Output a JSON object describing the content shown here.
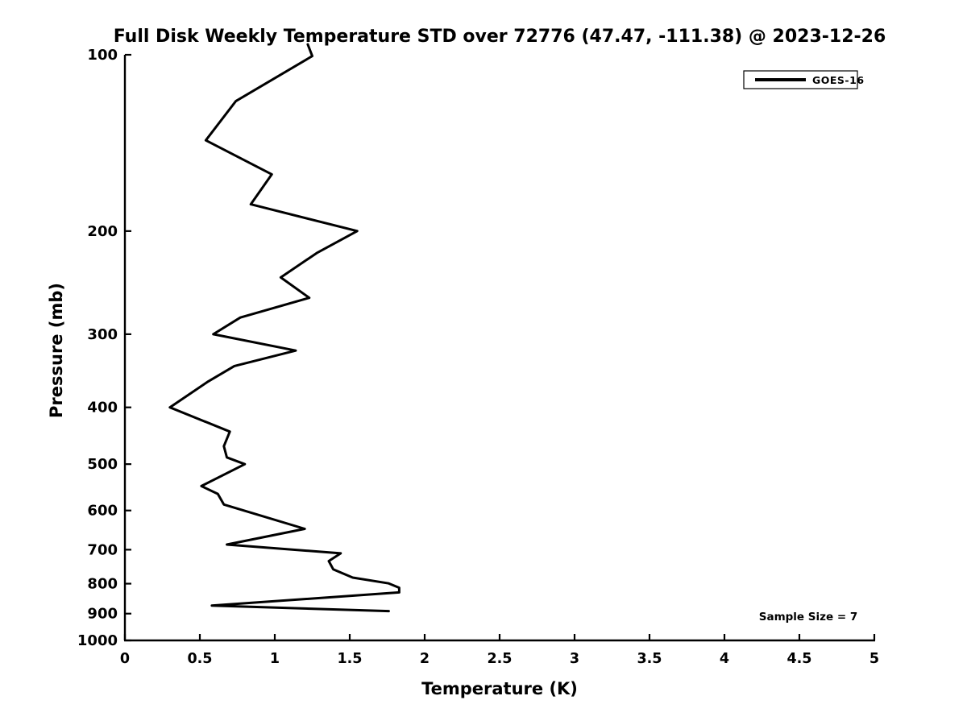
{
  "figure": {
    "background": "#ffffff",
    "foreground": "#000000"
  },
  "chart_data": {
    "type": "line",
    "title": "Full Disk Weekly Temperature STD over 72776 (47.47, -111.38) @ 2023-12-26",
    "xlabel": "Temperature (K)",
    "ylabel": "Pressure (mb)",
    "xlim": [
      0,
      5
    ],
    "ylim": [
      1000,
      100
    ],
    "yscale": "log",
    "grid": false,
    "x_ticks": [
      0,
      0.5,
      1,
      1.5,
      2,
      2.5,
      3,
      3.5,
      4,
      4.5,
      5
    ],
    "y_ticks": [
      100,
      200,
      300,
      400,
      500,
      600,
      700,
      800,
      900,
      1000
    ],
    "legend": {
      "position": "top-right",
      "entries": [
        {
          "label": "GOES-16",
          "color": "#000000",
          "line_width": 4
        }
      ]
    },
    "annotation": "Sample Size = 7",
    "series": [
      {
        "name": "GOES-16",
        "color": "#000000",
        "points": [
          [
            96,
            1.22
          ],
          [
            100.5,
            1.25
          ],
          [
            120,
            0.74
          ],
          [
            140,
            0.54
          ],
          [
            160,
            0.98
          ],
          [
            180,
            0.84
          ],
          [
            200,
            1.55
          ],
          [
            218,
            1.28
          ],
          [
            240,
            1.04
          ],
          [
            260,
            1.23
          ],
          [
            281,
            0.77
          ],
          [
            300,
            0.59
          ],
          [
            320,
            1.14
          ],
          [
            340,
            0.73
          ],
          [
            362,
            0.55
          ],
          [
            400,
            0.3
          ],
          [
            440,
            0.7
          ],
          [
            466,
            0.66
          ],
          [
            487,
            0.68
          ],
          [
            500,
            0.8
          ],
          [
            545,
            0.51
          ],
          [
            562,
            0.62
          ],
          [
            586,
            0.66
          ],
          [
            645,
            1.2
          ],
          [
            686,
            0.68
          ],
          [
            710,
            1.44
          ],
          [
            732,
            1.36
          ],
          [
            756,
            1.39
          ],
          [
            781,
            1.52
          ],
          [
            799,
            1.76
          ],
          [
            813,
            1.83
          ],
          [
            828,
            1.83
          ],
          [
            872,
            0.58
          ],
          [
            891,
            1.76
          ]
        ]
      }
    ]
  }
}
